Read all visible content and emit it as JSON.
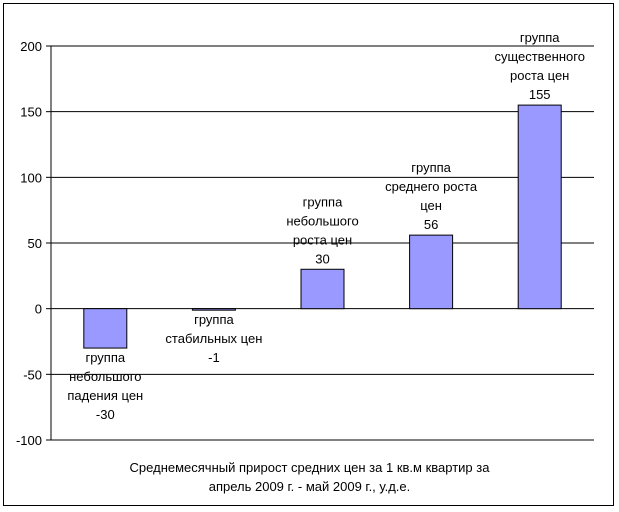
{
  "chart_data": {
    "type": "bar",
    "categories": [
      [
        "группа",
        "небольшого",
        "падения цен"
      ],
      [
        "группа",
        "стабильных цен"
      ],
      [
        "группа",
        "небольшого",
        "роста цен"
      ],
      [
        "группа",
        "среднего роста",
        "цен"
      ],
      [
        "группа",
        "существенного",
        "роста цен"
      ]
    ],
    "values": [
      -30,
      -1,
      30,
      56,
      155
    ],
    "value_labels": [
      "-30",
      "-1",
      "30",
      "56",
      "155"
    ],
    "yticks": [
      "200",
      "150",
      "100",
      "50",
      "0",
      "-50",
      "-100"
    ],
    "ylim": [
      -100,
      200
    ],
    "ystep": 50,
    "grid": true,
    "legend": "none",
    "caption_lines": [
      "Среднемесячный прирост средних цен за 1 кв.м квартир за",
      "апрель 2009 г. - май 2009 г., у.д.е."
    ],
    "colors": {
      "bar_fill": "#9999ff",
      "bar_stroke": "#000000",
      "grid": "#000000"
    }
  }
}
